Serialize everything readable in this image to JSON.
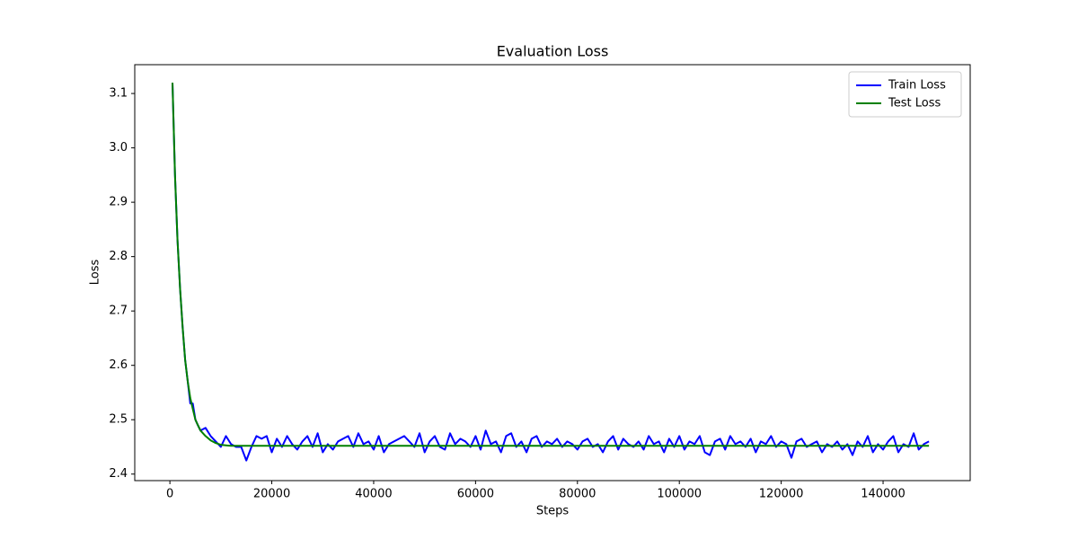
{
  "chart_data": {
    "type": "line",
    "title": "Evaluation Loss",
    "xlabel": "Steps",
    "ylabel": "Loss",
    "x": [
      500,
      1000,
      1500,
      2000,
      2500,
      3000,
      3500,
      4000,
      4500,
      5000,
      5500,
      6000,
      7000,
      8000,
      9000,
      10000,
      11000,
      12000,
      13000,
      14000,
      15000,
      16000,
      17000,
      18000,
      19000,
      20000,
      21000,
      22000,
      23000,
      24000,
      25000,
      26000,
      27000,
      28000,
      29000,
      30000,
      31000,
      32000,
      33000,
      34000,
      35000,
      36000,
      37000,
      38000,
      39000,
      40000,
      41000,
      42000,
      43000,
      44000,
      45000,
      46000,
      47000,
      48000,
      49000,
      50000,
      51000,
      52000,
      53000,
      54000,
      55000,
      56000,
      57000,
      58000,
      59000,
      60000,
      61000,
      62000,
      63000,
      64000,
      65000,
      66000,
      67000,
      68000,
      69000,
      70000,
      71000,
      72000,
      73000,
      74000,
      75000,
      76000,
      77000,
      78000,
      79000,
      80000,
      81000,
      82000,
      83000,
      84000,
      85000,
      86000,
      87000,
      88000,
      89000,
      90000,
      91000,
      92000,
      93000,
      94000,
      95000,
      96000,
      97000,
      98000,
      99000,
      100000,
      101000,
      102000,
      103000,
      104000,
      105000,
      106000,
      107000,
      108000,
      109000,
      110000,
      111000,
      112000,
      113000,
      114000,
      115000,
      116000,
      117000,
      118000,
      119000,
      120000,
      121000,
      122000,
      123000,
      124000,
      125000,
      126000,
      127000,
      128000,
      129000,
      130000,
      131000,
      132000,
      133000,
      134000,
      135000,
      136000,
      137000,
      138000,
      139000,
      140000,
      141000,
      142000,
      143000,
      144000,
      145000,
      146000,
      147000,
      148000,
      149000
    ],
    "series": [
      {
        "name": "Train Loss",
        "color": "#0000ff",
        "values": [
          3.12,
          2.95,
          2.83,
          2.74,
          2.67,
          2.61,
          2.57,
          2.53,
          2.53,
          2.5,
          2.49,
          2.48,
          2.485,
          2.47,
          2.46,
          2.45,
          2.47,
          2.455,
          2.45,
          2.45,
          2.425,
          2.45,
          2.47,
          2.465,
          2.47,
          2.44,
          2.465,
          2.45,
          2.47,
          2.455,
          2.445,
          2.46,
          2.47,
          2.45,
          2.475,
          2.44,
          2.455,
          2.445,
          2.46,
          2.465,
          2.47,
          2.45,
          2.475,
          2.455,
          2.46,
          2.445,
          2.47,
          2.44,
          2.455,
          2.46,
          2.465,
          2.47,
          2.46,
          2.45,
          2.475,
          2.44,
          2.46,
          2.47,
          2.45,
          2.445,
          2.475,
          2.455,
          2.465,
          2.46,
          2.45,
          2.47,
          2.445,
          2.48,
          2.455,
          2.46,
          2.44,
          2.47,
          2.475,
          2.45,
          2.46,
          2.44,
          2.465,
          2.47,
          2.45,
          2.46,
          2.455,
          2.465,
          2.45,
          2.46,
          2.455,
          2.445,
          2.46,
          2.465,
          2.45,
          2.455,
          2.44,
          2.46,
          2.47,
          2.445,
          2.465,
          2.455,
          2.45,
          2.46,
          2.445,
          2.47,
          2.455,
          2.46,
          2.44,
          2.465,
          2.45,
          2.47,
          2.445,
          2.46,
          2.455,
          2.47,
          2.44,
          2.435,
          2.46,
          2.465,
          2.445,
          2.47,
          2.455,
          2.46,
          2.45,
          2.465,
          2.44,
          2.46,
          2.455,
          2.47,
          2.45,
          2.46,
          2.455,
          2.43,
          2.46,
          2.465,
          2.45,
          2.455,
          2.46,
          2.44,
          2.455,
          2.45,
          2.46,
          2.445,
          2.455,
          2.435,
          2.46,
          2.45,
          2.47,
          2.44,
          2.455,
          2.445,
          2.46,
          2.47,
          2.44,
          2.455,
          2.45,
          2.475,
          2.445,
          2.455,
          2.46
        ]
      },
      {
        "name": "Test Loss",
        "color": "#008000",
        "values": [
          3.12,
          2.95,
          2.83,
          2.74,
          2.67,
          2.61,
          2.57,
          2.54,
          2.52,
          2.5,
          2.49,
          2.48,
          2.47,
          2.462,
          2.457,
          2.454,
          2.453,
          2.452,
          2.452,
          2.452,
          2.452,
          2.452,
          2.452,
          2.452,
          2.452,
          2.452,
          2.452,
          2.452,
          2.452,
          2.452,
          2.452,
          2.452,
          2.452,
          2.452,
          2.452,
          2.452,
          2.452,
          2.452,
          2.452,
          2.452,
          2.452,
          2.452,
          2.452,
          2.452,
          2.452,
          2.452,
          2.452,
          2.452,
          2.452,
          2.452,
          2.452,
          2.452,
          2.452,
          2.452,
          2.452,
          2.452,
          2.452,
          2.452,
          2.452,
          2.452,
          2.452,
          2.452,
          2.452,
          2.452,
          2.452,
          2.452,
          2.452,
          2.452,
          2.452,
          2.452,
          2.452,
          2.452,
          2.452,
          2.452,
          2.452,
          2.452,
          2.452,
          2.452,
          2.452,
          2.452,
          2.452,
          2.452,
          2.452,
          2.452,
          2.452,
          2.452,
          2.452,
          2.452,
          2.452,
          2.452,
          2.452,
          2.452,
          2.452,
          2.452,
          2.452,
          2.452,
          2.452,
          2.452,
          2.452,
          2.452,
          2.452,
          2.452,
          2.452,
          2.452,
          2.452,
          2.452,
          2.452,
          2.452,
          2.452,
          2.452,
          2.452,
          2.452,
          2.452,
          2.452,
          2.452,
          2.452,
          2.452,
          2.452,
          2.452,
          2.452,
          2.452,
          2.452,
          2.452,
          2.452,
          2.452,
          2.452,
          2.452,
          2.452,
          2.452,
          2.452,
          2.452,
          2.452,
          2.452,
          2.452,
          2.452,
          2.452,
          2.452,
          2.452,
          2.452,
          2.452,
          2.452,
          2.452,
          2.452,
          2.452,
          2.452,
          2.452,
          2.452,
          2.452,
          2.452,
          2.452,
          2.452,
          2.452,
          2.452,
          2.452,
          2.452
        ]
      }
    ],
    "xlim": [
      -6900,
      157100
    ],
    "xticks": [
      0,
      20000,
      40000,
      60000,
      80000,
      100000,
      120000,
      140000
    ],
    "ylim": [
      2.388,
      3.153
    ],
    "yticks": [
      2.4,
      2.5,
      2.6,
      2.7,
      2.8,
      2.9,
      {
        "value": 3,
        "label": "3.0"
      },
      3.1
    ],
    "legend": "upper right"
  }
}
